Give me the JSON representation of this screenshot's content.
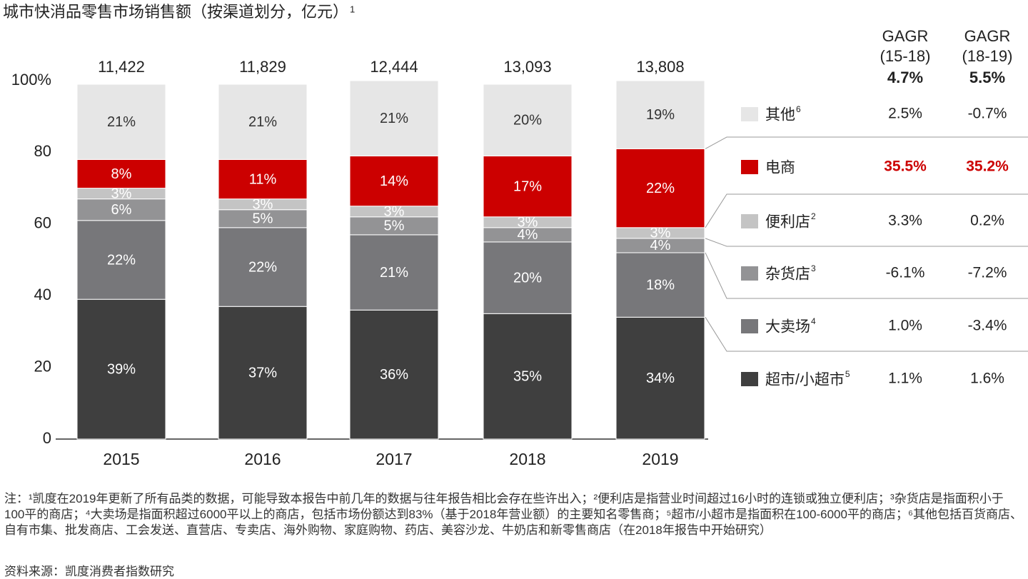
{
  "chart_data": {
    "type": "stacked_bar",
    "title": "城市快消品零售市场销售额（按渠道划分，亿元）",
    "title_footnote": "1",
    "categories": [
      "2015",
      "2016",
      "2017",
      "2018",
      "2019"
    ],
    "totals": {
      "values": [
        11422,
        11829,
        12444,
        13093,
        13808
      ],
      "value_labels": [
        "11,422",
        "11,829",
        "12,444",
        "13,093",
        "13,808"
      ]
    },
    "ylim": [
      0,
      100
    ],
    "yticks": [
      0,
      20,
      40,
      60,
      80,
      {
        "value": 100,
        "label": "100%"
      }
    ],
    "gagr_headers": [
      [
        "GAGR",
        "(15-18)",
        "4.7%"
      ],
      [
        "GAGR",
        "(18-19)",
        "5.5%"
      ]
    ],
    "series": [
      {
        "name": "超市/小超市",
        "footnote": "5",
        "color": "#3f3f3f",
        "text_color": "#ffffff",
        "values": [
          39,
          37,
          36,
          35,
          34
        ],
        "value_labels": [
          "39%",
          "37%",
          "36%",
          "35%",
          "34%"
        ],
        "gagr": [
          "1.1%",
          "1.6%"
        ]
      },
      {
        "name": "大卖场",
        "footnote": "4",
        "color": "#77777a",
        "text_color": "#ffffff",
        "values": [
          22,
          22,
          21,
          20,
          18
        ],
        "value_labels": [
          "22%",
          "22%",
          "21%",
          "20%",
          "18%"
        ],
        "gagr": [
          "1.0%",
          "-3.4%"
        ]
      },
      {
        "name": "杂货店",
        "footnote": "3",
        "color": "#939395",
        "text_color": "#ffffff",
        "values": [
          6,
          5,
          5,
          4,
          4
        ],
        "value_labels": [
          "6%",
          "5%",
          "5%",
          "4%",
          "4%"
        ],
        "gagr": [
          "-6.1%",
          "-7.2%"
        ]
      },
      {
        "name": "便利店",
        "footnote": "2",
        "color": "#c4c4c4",
        "text_color": "#ffffff",
        "values": [
          3,
          3,
          3,
          3,
          3
        ],
        "value_labels": [
          "3%",
          "3%",
          "3%",
          "3%",
          "3%"
        ],
        "gagr": [
          "3.3%",
          "0.2%"
        ]
      },
      {
        "name": "电商",
        "color": "#cc0000",
        "text_color": "#ffffff",
        "highlight": true,
        "values": [
          8,
          11,
          14,
          17,
          22
        ],
        "value_labels": [
          "8%",
          "11%",
          "14%",
          "17%",
          "22%"
        ],
        "gagr": [
          "35.5%",
          "35.2%"
        ]
      },
      {
        "name": "其他",
        "footnote": "6",
        "color": "#e6e6e6",
        "text_color": "#333333",
        "values": [
          21,
          21,
          21,
          20,
          19
        ],
        "value_labels": [
          "21%",
          "21%",
          "21%",
          "20%",
          "19%"
        ],
        "gagr": [
          "2.5%",
          "-0.7%"
        ]
      }
    ],
    "notes": "注：¹凯度在2019年更新了所有品类的数据，可能导致本报告中前几年的数据与往年报告相比会存在些许出入；²便利店是指营业时间超过16小时的连锁或独立便利店；³杂货店是指面积小于100平的商店；⁴大卖场是指面积超过6000平以上的商店，包括市场份额达到83%（基于2018年营业额）的主要知名零售商；⁵超市/小超市是指面积在100-6000平的商店；⁶其他包括百货商店、自有市集、批发商店、工会发送、直营店、专卖店、海外购物、家庭购物、药店、美容沙龙、牛奶店和新零售商店（在2018年报告中开始研究）",
    "source": "资料来源：凯度消费者指数研究"
  }
}
